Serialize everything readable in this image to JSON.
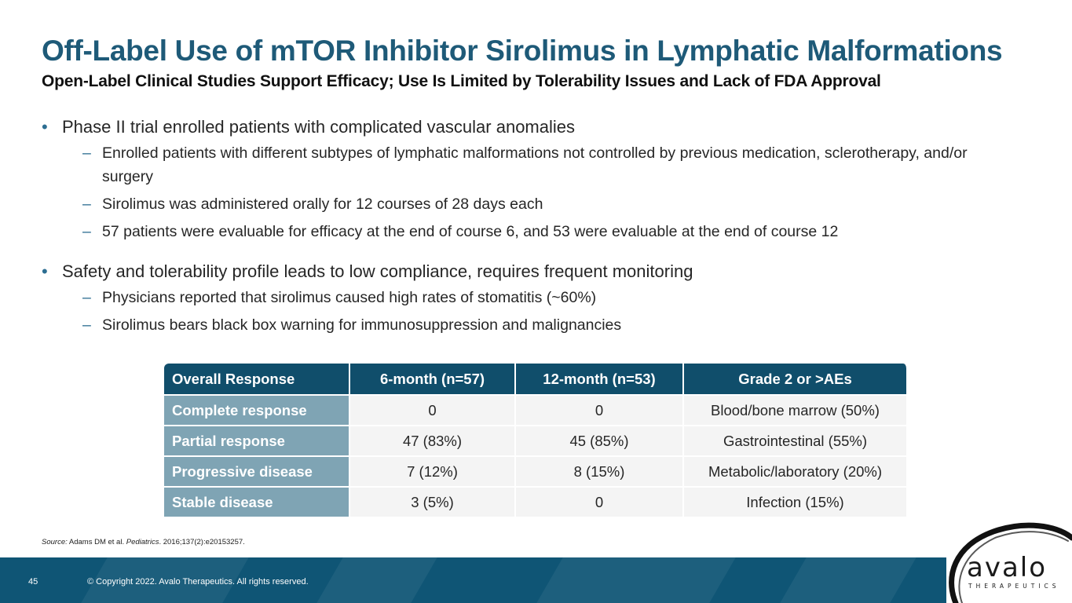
{
  "slide": {
    "title": "Off-Label Use of mTOR Inhibitor Sirolimus in Lymphatic Malformations",
    "subtitle": "Open-Label Clinical Studies Support Efficacy; Use Is Limited by Tolerability Issues and Lack of FDA Approval"
  },
  "bullets": [
    {
      "text": "Phase II trial enrolled patients with complicated vascular anomalies",
      "sub": [
        "Enrolled patients with different subtypes of lymphatic malformations not controlled by previous medication, sclerotherapy, and/or surgery",
        "Sirolimus was administered orally for 12 courses of 28 days each",
        "57 patients were evaluable for efficacy at the end of course 6, and 53 were evaluable at the end of course 12"
      ]
    },
    {
      "text": "Safety and tolerability profile leads to low compliance, requires frequent monitoring",
      "sub": [
        "Physicians reported that sirolimus caused high rates of stomatitis (~60%)",
        "Sirolimus bears black box warning for immunosuppression and malignancies"
      ]
    }
  ],
  "table": {
    "headers": [
      "Overall Response",
      "6-month (n=57)",
      "12-month (n=53)",
      "Grade 2 or >AEs"
    ],
    "rows": [
      [
        "Complete response",
        "0",
        "0",
        "Blood/bone marrow (50%)"
      ],
      [
        "Partial response",
        "47 (83%)",
        "45 (85%)",
        "Gastrointestinal (55%)"
      ],
      [
        "Progressive disease",
        "7 (12%)",
        "8 (15%)",
        "Metabolic/laboratory (20%)"
      ],
      [
        "Stable disease",
        "3 (5%)",
        "0",
        "Infection (15%)"
      ]
    ]
  },
  "source": {
    "label": "Source:",
    "authors": "Adams DM et al.",
    "journal": "Pediatrics",
    "citation": ". 2016;137(2):e20153257."
  },
  "footer": {
    "page_number": "45",
    "copyright": "© Copyright 2022. Avalo Therapeutics. All rights reserved."
  },
  "logo": {
    "word": "avalo",
    "tagline": "THERAPEUTICS"
  },
  "colors": {
    "title": "#1e5a78",
    "header_bg": "#104e6b",
    "rowhead_bg": "#7fa4b4",
    "cell_bg": "#f4f4f4",
    "footer_bg": "#0f5575",
    "bullet": "#2d6e92"
  },
  "icons": {
    "bullet": "bullet-dot-icon",
    "sub_bullet": "dash-icon",
    "logo_mark": "brush-circle-icon"
  }
}
